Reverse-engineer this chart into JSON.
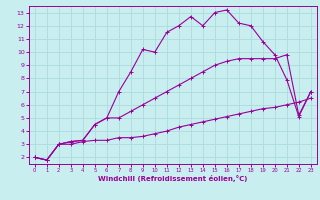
{
  "xlabel": "Windchill (Refroidissement éolien,°C)",
  "background_color": "#c8eef0",
  "grid_color": "#b0dde0",
  "line_color": "#990099",
  "xlim": [
    -0.5,
    23.5
  ],
  "ylim": [
    1.5,
    13.5
  ],
  "xticks": [
    0,
    1,
    2,
    3,
    4,
    5,
    6,
    7,
    8,
    9,
    10,
    11,
    12,
    13,
    14,
    15,
    16,
    17,
    18,
    19,
    20,
    21,
    22,
    23
  ],
  "yticks": [
    2,
    3,
    4,
    5,
    6,
    7,
    8,
    9,
    10,
    11,
    12,
    13
  ],
  "line1_x": [
    0,
    1,
    2,
    3,
    4,
    5,
    6,
    7,
    8,
    9,
    10,
    11,
    12,
    13,
    14,
    15,
    16,
    17,
    18,
    19,
    20,
    21,
    22,
    23
  ],
  "line1_y": [
    2.0,
    1.8,
    3.0,
    3.0,
    3.2,
    3.3,
    3.3,
    3.5,
    3.5,
    3.6,
    3.8,
    4.0,
    4.3,
    4.5,
    4.7,
    4.9,
    5.1,
    5.3,
    5.5,
    5.7,
    5.8,
    6.0,
    6.2,
    6.5
  ],
  "line2_x": [
    0,
    1,
    2,
    3,
    4,
    5,
    6,
    7,
    8,
    9,
    10,
    11,
    12,
    13,
    14,
    15,
    16,
    17,
    18,
    19,
    20,
    21,
    22,
    23
  ],
  "line2_y": [
    2.0,
    1.8,
    3.0,
    3.2,
    3.3,
    4.5,
    5.0,
    5.0,
    5.5,
    6.0,
    6.5,
    7.0,
    7.5,
    8.0,
    8.5,
    9.0,
    9.3,
    9.5,
    9.5,
    9.5,
    9.5,
    9.8,
    5.2,
    7.0
  ],
  "line3_x": [
    0,
    1,
    2,
    3,
    4,
    5,
    6,
    7,
    8,
    9,
    10,
    11,
    12,
    13,
    14,
    15,
    16,
    17,
    18,
    19,
    20,
    21,
    22,
    23
  ],
  "line3_y": [
    2.0,
    1.8,
    3.0,
    3.2,
    3.3,
    4.5,
    5.0,
    7.0,
    8.5,
    10.2,
    10.0,
    11.5,
    12.0,
    12.7,
    12.0,
    13.0,
    13.2,
    12.2,
    12.0,
    10.8,
    9.8,
    7.9,
    5.1,
    7.0
  ]
}
